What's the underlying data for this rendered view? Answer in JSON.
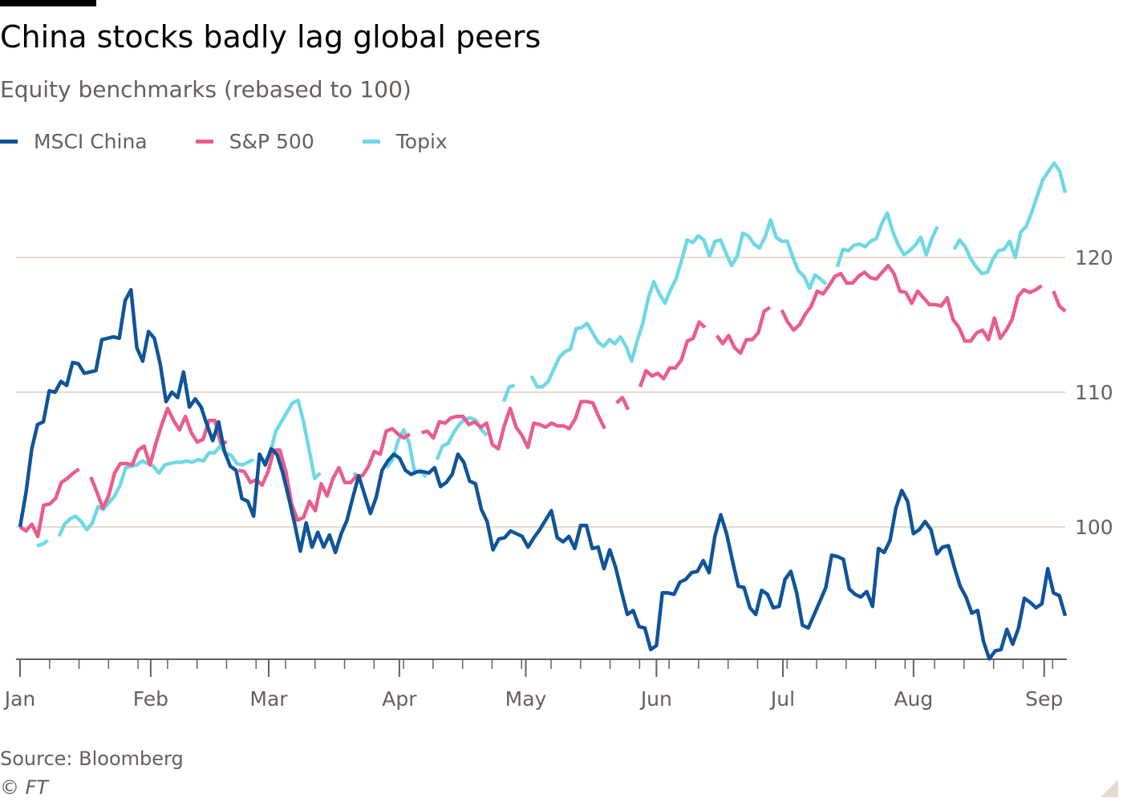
{
  "header": {
    "title": "China stocks badly lag global peers",
    "subtitle": "Equity benchmarks (rebased to 100)"
  },
  "footer": {
    "source": "Source: Bloomberg",
    "copyright": "© FT"
  },
  "colors": {
    "gridline": "#e6d9ce",
    "axis": "#66605c",
    "text": "#66605c"
  },
  "chart_data": {
    "type": "line",
    "title": "China stocks badly lag global peers",
    "subtitle": "Equity benchmarks (rebased to 100)",
    "xlabel": "",
    "ylabel": "",
    "x_start_day": 0,
    "x_range": [
      0,
      248
    ],
    "ylim": [
      90,
      128
    ],
    "y_ticks": [
      100,
      110,
      120
    ],
    "y_tick_labels": [
      "100",
      "110",
      "120"
    ],
    "y_axis_side": "right",
    "x_ticks": [
      {
        "day": 0,
        "label": "Jan"
      },
      {
        "day": 31,
        "label": "Feb"
      },
      {
        "day": 59,
        "label": "Mar"
      },
      {
        "day": 90,
        "label": "Apr"
      },
      {
        "day": 120,
        "label": "May"
      },
      {
        "day": 151,
        "label": "Jun"
      },
      {
        "day": 181,
        "label": "Jul"
      },
      {
        "day": 212,
        "label": "Aug"
      },
      {
        "day": 243,
        "label": "Sep"
      }
    ],
    "legend_position": "top-left",
    "series": [
      {
        "name": "MSCI China",
        "color": "#0f5499",
        "values": [
          100.0,
          102.5,
          105.8,
          107.6,
          107.8,
          110.1,
          110.0,
          110.8,
          110.5,
          112.2,
          112.1,
          111.4,
          111.5,
          111.6,
          113.9,
          114.0,
          114.1,
          114.0,
          116.8,
          117.6,
          113.3,
          112.3,
          114.5,
          114.0,
          112.1,
          109.3,
          110.0,
          109.6,
          111.5,
          108.9,
          109.5,
          108.9,
          107.6,
          106.4,
          107.8,
          105.6,
          104.5,
          104.2,
          102.1,
          101.9,
          100.8,
          105.4,
          104.6,
          105.8,
          105.4,
          104.0,
          102.2,
          100.3,
          98.2,
          100.3,
          98.5,
          99.6,
          98.5,
          99.4,
          98.1,
          99.5,
          100.5,
          102.2,
          103.8,
          102.4,
          101.0,
          102.2,
          104.2,
          104.9,
          105.4,
          105.1,
          104.2,
          103.9,
          104.1,
          104.1,
          104.0,
          104.4,
          103.0,
          103.3,
          103.9,
          105.4,
          104.8,
          103.4,
          103.2,
          101.3,
          100.4,
          98.3,
          99.1,
          99.2,
          99.7,
          99.5,
          99.3,
          98.5,
          99.2,
          99.8,
          100.5,
          101.2,
          99.2,
          98.9,
          99.3,
          98.4,
          100.1,
          100.1,
          98.4,
          98.5,
          96.9,
          98.3,
          97.0,
          95.2,
          93.5,
          93.8,
          92.6,
          92.5,
          90.9,
          91.2,
          95.1,
          95.1,
          95.0,
          95.9,
          96.1,
          96.6,
          96.7,
          97.5,
          96.6,
          99.3,
          100.9,
          99.5,
          97.5,
          95.6,
          95.5,
          94.0,
          93.5,
          95.3,
          95.0,
          94.0,
          94.1,
          96.1,
          96.7,
          95.1,
          92.7,
          92.5,
          93.5,
          94.5,
          95.5,
          97.9,
          97.8,
          97.6,
          95.4,
          95.0,
          94.8,
          95.2,
          94.1,
          98.4,
          98.1,
          99.0,
          101.4,
          102.7,
          101.9,
          99.5,
          99.8,
          100.4,
          99.8,
          98.0,
          98.5,
          98.6,
          97.0,
          95.6,
          94.8,
          93.6,
          93.8,
          91.5,
          90.2,
          90.8,
          90.9,
          92.4,
          91.3,
          92.5,
          94.7,
          94.4,
          94.0,
          94.3,
          96.9,
          95.1,
          94.9,
          93.4
        ],
        "gaps": []
      },
      {
        "name": "S&P 500",
        "color": "#e95d8c",
        "values": [
          100.0,
          99.7,
          100.2,
          99.3,
          101.6,
          101.7,
          102.1,
          103.3,
          103.6,
          104.0,
          104.3,
          null,
          103.7,
          102.6,
          101.4,
          102.3,
          104.0,
          104.7,
          104.7,
          104.6,
          105.7,
          106.0,
          104.6,
          106.2,
          107.6,
          108.8,
          107.9,
          107.2,
          108.2,
          107.0,
          106.3,
          106.5,
          107.9,
          107.9,
          106.2,
          106.3,
          null,
          104.2,
          104.1,
          103.3,
          103.5,
          103.1,
          104.1,
          105.7,
          105.7,
          104.1,
          101.7,
          100.5,
          100.7,
          101.9,
          101.2,
          103.2,
          102.3,
          103.6,
          104.4,
          103.3,
          103.3,
          103.8,
          103.8,
          104.5,
          105.6,
          105.4,
          107.1,
          107.3,
          106.9,
          106.6,
          106.9,
          null,
          107.0,
          107.1,
          106.6,
          107.8,
          107.7,
          108.1,
          108.2,
          108.2,
          107.6,
          107.8,
          107.4,
          107.7,
          106.1,
          105.8,
          107.5,
          108.8,
          107.4,
          106.8,
          105.9,
          107.7,
          107.6,
          107.4,
          107.7,
          107.5,
          107.5,
          107.3,
          108.0,
          109.3,
          109.3,
          109.2,
          108.2,
          107.3,
          null,
          109.2,
          109.6,
          108.7,
          null,
          110.4,
          111.6,
          111.2,
          111.4,
          111.0,
          111.8,
          111.8,
          112.4,
          113.8,
          114.0,
          115.2,
          114.8,
          null,
          114.2,
          113.6,
          114.2,
          113.3,
          112.9,
          113.9,
          113.9,
          114.4,
          116.0,
          116.3,
          null,
          116.1,
          115.2,
          114.6,
          115.0,
          115.8,
          116.4,
          117.5,
          117.3,
          117.9,
          118.6,
          118.8,
          118.1,
          118.1,
          118.6,
          118.9,
          118.5,
          118.4,
          118.9,
          119.4,
          118.8,
          117.5,
          117.4,
          116.6,
          117.5,
          117.0,
          116.5,
          116.5,
          116.4,
          117.0,
          115.4,
          114.8,
          113.8,
          113.8,
          114.4,
          114.6,
          113.9,
          115.5,
          114.0,
          114.6,
          115.4,
          117.1,
          117.6,
          117.4,
          117.6,
          117.9,
          null,
          117.5,
          116.4,
          116.0
        ],
        "gaps": []
      },
      {
        "name": "Topix",
        "color": "#6fd8e6",
        "values": [
          null,
          null,
          null,
          98.6,
          98.7,
          99.0,
          null,
          99.3,
          100.2,
          100.6,
          100.8,
          100.4,
          99.8,
          100.3,
          101.5,
          101.3,
          101.8,
          102.3,
          103.1,
          104.4,
          104.5,
          104.6,
          104.9,
          104.7,
          104.5,
          104.0,
          104.6,
          104.7,
          104.8,
          104.8,
          104.9,
          104.8,
          105.0,
          104.9,
          105.5,
          105.5,
          106.0,
          105.5,
          105.3,
          104.7,
          104.6,
          104.8,
          105.0,
          null,
          104.8,
          105.5,
          107.1,
          107.8,
          108.5,
          109.2,
          109.4,
          107.8,
          105.7,
          103.6,
          104.0,
          null,
          103.5,
          null,
          102.1,
          null,
          104.0,
          103.7,
          null,
          104.0,
          null,
          null,
          104.4,
          105.0,
          106.4,
          107.2,
          106.2,
          104.0,
          104.2,
          103.7,
          null,
          105.0,
          106.0,
          106.2,
          107.0,
          107.6,
          108.0,
          108.1,
          107.9,
          107.2,
          106.8,
          null,
          null,
          109.3,
          110.4,
          110.5,
          null,
          null,
          111.2,
          110.4,
          110.4,
          110.8,
          111.7,
          112.6,
          113.0,
          113.2,
          114.7,
          114.8,
          115.1,
          114.4,
          113.7,
          113.4,
          113.9,
          113.6,
          114.1,
          113.4,
          112.3,
          113.8,
          115.1,
          117.0,
          118.2,
          117.3,
          116.6,
          117.6,
          118.4,
          119.8,
          121.3,
          121.1,
          121.6,
          121.3,
          120.1,
          121.2,
          121.3,
          120.3,
          119.4,
          120.1,
          121.8,
          121.6,
          121.0,
          120.7,
          121.5,
          122.8,
          121.5,
          121.2,
          121.2,
          120.0,
          119.0,
          118.6,
          117.7,
          118.7,
          118.4,
          118.0,
          null,
          119.3,
          120.6,
          120.5,
          120.9,
          121.0,
          120.8,
          121.2,
          121.4,
          122.5,
          123.3,
          121.9,
          120.9,
          120.2,
          120.5,
          120.9,
          121.5,
          120.2,
          121.4,
          122.3,
          null,
          null,
          120.6,
          121.3,
          120.8,
          119.9,
          119.3,
          118.8,
          118.9,
          119.9,
          120.5,
          120.6,
          121.2,
          120.0,
          121.9,
          122.3,
          123.4,
          124.6,
          125.8,
          126.4,
          127.0,
          126.4,
          124.8
        ],
        "gaps": []
      }
    ]
  }
}
